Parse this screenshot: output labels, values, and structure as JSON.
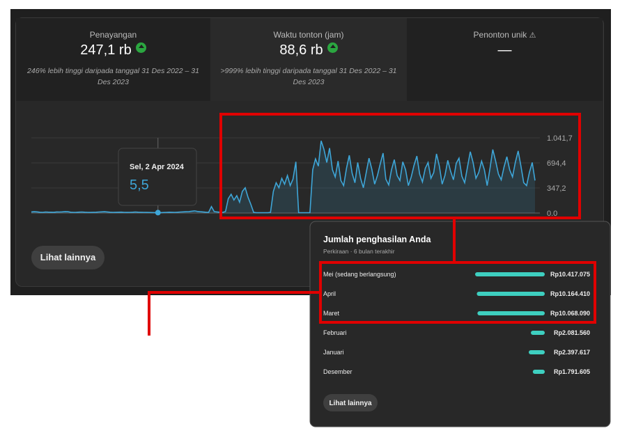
{
  "stats": [
    {
      "label": "Penayangan",
      "value": "247,1 rb",
      "note": "246% lebih tinggi daripada tanggal 31 Des 2022 – 31 Des 2023"
    },
    {
      "label": "Waktu tonton (jam)",
      "value": "88,6 rb",
      "note": ">999% lebih tinggi daripada tanggal 31 Des 2022 – 31 Des 2023"
    },
    {
      "label": "Penonton unik",
      "value": "—"
    }
  ],
  "chart_data": {
    "type": "line",
    "color": "#3ea6d8",
    "ylim": [
      0,
      1041.7
    ],
    "yticks": [
      {
        "value": 0,
        "label": "0.0"
      },
      {
        "value": 347.2,
        "label": "347,2"
      },
      {
        "value": 694.4,
        "label": "694,4"
      },
      {
        "value": 1041.7,
        "label": "1.041,7"
      }
    ],
    "grid": true,
    "values": [
      15,
      18,
      16,
      12,
      10,
      14,
      13,
      12,
      11,
      15,
      14,
      16,
      20,
      18,
      12,
      10,
      11,
      13,
      14,
      12,
      10,
      9,
      11,
      12,
      14,
      16,
      18,
      15,
      12,
      10,
      11,
      12,
      13,
      10,
      9,
      10,
      12,
      14,
      12,
      11,
      10,
      9,
      8,
      7,
      6,
      5.5,
      6,
      8,
      10,
      12,
      11,
      10,
      12,
      14,
      16,
      18,
      20,
      25,
      30,
      22,
      18,
      15,
      12,
      10,
      90,
      20,
      15,
      12,
      10,
      20,
      200,
      260,
      180,
      240,
      150,
      300,
      350,
      220,
      120,
      10,
      5,
      5,
      5,
      5,
      5,
      10,
      300,
      420,
      350,
      480,
      400,
      520,
      380,
      470,
      710,
      5,
      5,
      5,
      5,
      5,
      600,
      750,
      650,
      1000,
      880,
      700,
      900,
      600,
      500,
      720,
      450,
      380,
      620,
      800,
      550,
      420,
      700,
      480,
      350,
      560,
      760,
      610,
      400,
      520,
      680,
      830,
      470,
      390,
      600,
      740,
      520,
      450,
      710,
      600,
      380,
      500,
      660,
      790,
      540,
      430,
      620,
      700,
      480,
      560,
      820,
      650,
      400,
      520,
      730,
      580,
      460,
      690,
      760,
      510,
      420,
      640,
      850,
      700,
      480,
      560,
      720,
      600,
      380,
      620,
      880,
      720,
      540,
      460,
      640,
      780,
      600,
      500,
      700,
      860,
      650,
      420,
      380,
      560,
      700,
      450
    ],
    "tooltip": {
      "date": "Sel, 2 Apr 2024",
      "value_label": "5,5",
      "index": 45
    }
  },
  "more_button": "Lihat lainnya",
  "earnings": {
    "title": "Jumlah penghasilan Anda",
    "subtitle": "Perkiraan · 6 bulan terakhir",
    "rows": [
      {
        "label": "Mei (sedang berlangsung)",
        "value": 10417075,
        "value_label": "Rp10.417.075"
      },
      {
        "label": "April",
        "value": 10164410,
        "value_label": "Rp10.164.410"
      },
      {
        "label": "Maret",
        "value": 10068090,
        "value_label": "Rp10.068.090"
      },
      {
        "label": "Februari",
        "value": 2081560,
        "value_label": "Rp2.081.560"
      },
      {
        "label": "Januari",
        "value": 2397617,
        "value_label": "Rp2.397.617"
      },
      {
        "label": "Desember",
        "value": 1791605,
        "value_label": "Rp1.791.605"
      }
    ],
    "button": "Lihat lainnya"
  }
}
